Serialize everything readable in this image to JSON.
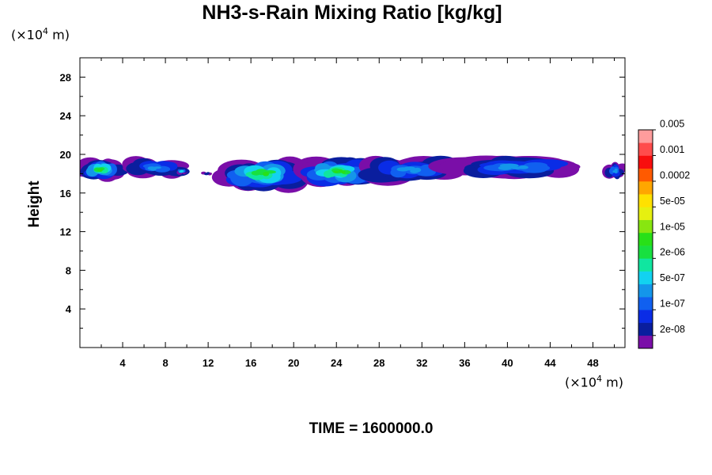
{
  "chart_data": {
    "type": "heatmap",
    "title": "NH3-s-Rain Mixing Ratio [kg/kg]",
    "ylabel": "Height",
    "x_unit_prefix": "(×10",
    "x_unit_exp": "4",
    "x_unit_suffix": " m)",
    "y_unit_prefix": "(×10",
    "y_unit_exp": "4",
    "y_unit_suffix": " m)",
    "xlim": [
      0,
      51
    ],
    "ylim": [
      0,
      30
    ],
    "x_ticks": [
      4,
      8,
      12,
      16,
      20,
      24,
      28,
      32,
      36,
      40,
      44,
      48
    ],
    "y_ticks": [
      4,
      8,
      12,
      16,
      20,
      24,
      28
    ],
    "colorbar": {
      "colors": [
        "#7a0ea8",
        "#0a1e9e",
        "#0a2ce6",
        "#1060f0",
        "#1496ea",
        "#12d2f0",
        "#10e6a0",
        "#18e040",
        "#28e018",
        "#88e610",
        "#e6f010",
        "#ffe100",
        "#ffa600",
        "#ff5a00",
        "#f80e0e",
        "#ff4c4c",
        "#ff9c9c"
      ],
      "labels": [
        "2e-08",
        "1e-07",
        "5e-07",
        "2e-06",
        "1e-05",
        "5e-05",
        "0.0002",
        "0.001",
        "0.005"
      ]
    },
    "cloud_regions": [
      {
        "x": [
          0,
          4
        ],
        "y": [
          17.2,
          19.6
        ],
        "max_level": 8
      },
      {
        "x": [
          4.5,
          10
        ],
        "y": [
          17.6,
          19.6
        ],
        "max_level": 4
      },
      {
        "x": [
          9,
          10
        ],
        "y": [
          17.9,
          18.6
        ],
        "max_level": 5
      },
      {
        "x": [
          11.5,
          12.5
        ],
        "y": [
          17.8,
          18.2
        ],
        "max_level": 1
      },
      {
        "x": [
          13.5,
          20.5
        ],
        "y": [
          16.4,
          19.6
        ],
        "max_level": 8
      },
      {
        "x": [
          21,
          27.5
        ],
        "y": [
          16.6,
          19.8
        ],
        "max_level": 8
      },
      {
        "x": [
          27,
          35
        ],
        "y": [
          17.0,
          19.8
        ],
        "max_level": 4
      },
      {
        "x": [
          35.5,
          46
        ],
        "y": [
          17.5,
          19.9
        ],
        "max_level": 4
      },
      {
        "x": [
          49,
          51
        ],
        "y": [
          17.3,
          19.3
        ],
        "max_level": 4
      }
    ],
    "time_label": "TIME = 1600000.0"
  }
}
